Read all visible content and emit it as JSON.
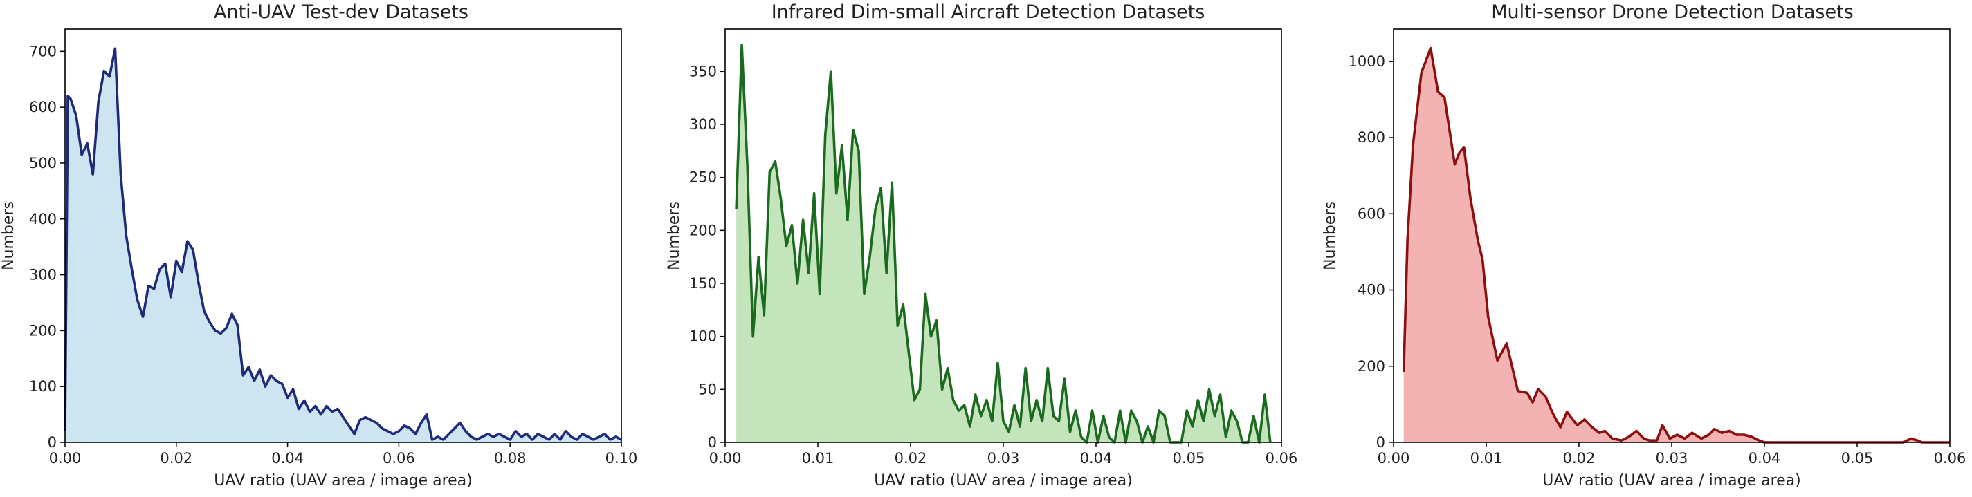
{
  "chart_data": [
    {
      "type": "area",
      "title": "Anti-UAV Test-dev Datasets",
      "xlabel": "UAV ratio (UAV area / image area)",
      "ylabel": "Numbers",
      "xlim": [
        0,
        0.1
      ],
      "ylim": [
        0,
        740
      ],
      "xticks": [
        0,
        0.02,
        0.04,
        0.06,
        0.08,
        0.1
      ],
      "xtick_labels": [
        "0.00",
        "0.02",
        "0.04",
        "0.06",
        "0.08",
        "0.10"
      ],
      "yticks": [
        0,
        100,
        200,
        300,
        400,
        500,
        600,
        700
      ],
      "ytick_labels": [
        "0",
        "100",
        "200",
        "300",
        "400",
        "500",
        "600",
        "700"
      ],
      "grid": false,
      "line_color": "#1f2a7a",
      "fill_color": "#cde5f0",
      "series": [
        {
          "x": [
            0.0,
            0.0005,
            0.001,
            0.002,
            0.003,
            0.004,
            0.005,
            0.006,
            0.007,
            0.008,
            0.009,
            0.01,
            0.011,
            0.012,
            0.013,
            0.014,
            0.015,
            0.016,
            0.017,
            0.018,
            0.019,
            0.02,
            0.021,
            0.022,
            0.023,
            0.024,
            0.025,
            0.026,
            0.027,
            0.028,
            0.029,
            0.03,
            0.031,
            0.032,
            0.033,
            0.034,
            0.035,
            0.036,
            0.037,
            0.038,
            0.039,
            0.04,
            0.041,
            0.042,
            0.043,
            0.044,
            0.045,
            0.046,
            0.047,
            0.048,
            0.049,
            0.05,
            0.051,
            0.052,
            0.053,
            0.054,
            0.055,
            0.056,
            0.057,
            0.058,
            0.059,
            0.06,
            0.061,
            0.062,
            0.063,
            0.064,
            0.065,
            0.066,
            0.067,
            0.068,
            0.069,
            0.07,
            0.071,
            0.072,
            0.073,
            0.074,
            0.075,
            0.076,
            0.077,
            0.078,
            0.079,
            0.08,
            0.081,
            0.082,
            0.083,
            0.084,
            0.085,
            0.086,
            0.087,
            0.088,
            0.089,
            0.09,
            0.091,
            0.092,
            0.093,
            0.094,
            0.095,
            0.096,
            0.097,
            0.098,
            0.099,
            0.1
          ],
          "y": [
            20,
            620,
            615,
            585,
            515,
            535,
            480,
            610,
            665,
            655,
            705,
            480,
            370,
            310,
            255,
            225,
            280,
            275,
            310,
            320,
            260,
            325,
            305,
            360,
            345,
            285,
            235,
            215,
            200,
            195,
            205,
            230,
            210,
            120,
            135,
            110,
            130,
            100,
            120,
            110,
            105,
            80,
            95,
            60,
            75,
            55,
            65,
            50,
            65,
            55,
            60,
            45,
            30,
            15,
            40,
            45,
            40,
            35,
            25,
            20,
            15,
            20,
            30,
            25,
            15,
            35,
            50,
            5,
            10,
            5,
            15,
            25,
            35,
            20,
            10,
            5,
            10,
            15,
            10,
            15,
            10,
            5,
            20,
            10,
            15,
            5,
            15,
            10,
            5,
            15,
            5,
            20,
            10,
            5,
            15,
            10,
            5,
            10,
            15,
            5,
            10,
            5
          ]
        }
      ]
    },
    {
      "type": "area",
      "title": "Infrared Dim-small Aircraft Detection Datasets",
      "xlabel": "UAV ratio (UAV area / image area)",
      "ylabel": "Numbers",
      "xlim": [
        0,
        0.06
      ],
      "ylim": [
        0,
        390
      ],
      "xticks": [
        0,
        0.01,
        0.02,
        0.03,
        0.04,
        0.05,
        0.06
      ],
      "xtick_labels": [
        "0.00",
        "0.01",
        "0.02",
        "0.03",
        "0.04",
        "0.05",
        "0.06"
      ],
      "yticks": [
        0,
        50,
        100,
        150,
        200,
        250,
        300,
        350
      ],
      "ytick_labels": [
        "0",
        "50",
        "100",
        "150",
        "200",
        "250",
        "300",
        "350"
      ],
      "grid": false,
      "line_color": "#1b6a1f",
      "fill_color": "#c4e4bb",
      "series": [
        {
          "x": [
            0.0012,
            0.0018,
            0.0024,
            0.003,
            0.0036,
            0.0042,
            0.0048,
            0.0054,
            0.006,
            0.0066,
            0.0072,
            0.0078,
            0.0084,
            0.009,
            0.0096,
            0.0102,
            0.0108,
            0.0114,
            0.012,
            0.0126,
            0.0132,
            0.0138,
            0.0144,
            0.015,
            0.0156,
            0.0162,
            0.0168,
            0.0174,
            0.018,
            0.0186,
            0.0192,
            0.0198,
            0.0204,
            0.021,
            0.0216,
            0.0222,
            0.0228,
            0.0234,
            0.024,
            0.0246,
            0.0252,
            0.0258,
            0.0264,
            0.027,
            0.0276,
            0.0282,
            0.0288,
            0.0294,
            0.03,
            0.0306,
            0.0312,
            0.0318,
            0.0324,
            0.033,
            0.0336,
            0.0342,
            0.0348,
            0.0354,
            0.036,
            0.0366,
            0.0372,
            0.0378,
            0.0384,
            0.039,
            0.0396,
            0.0402,
            0.0408,
            0.0414,
            0.042,
            0.0426,
            0.0432,
            0.0438,
            0.0444,
            0.045,
            0.0456,
            0.0462,
            0.0468,
            0.0474,
            0.048,
            0.0486,
            0.0492,
            0.0498,
            0.0504,
            0.051,
            0.0516,
            0.0522,
            0.0528,
            0.0534,
            0.054,
            0.0546,
            0.0552,
            0.0558,
            0.0564,
            0.057,
            0.0576,
            0.0582,
            0.0588
          ],
          "y": [
            220,
            375,
            260,
            100,
            175,
            120,
            255,
            265,
            230,
            185,
            205,
            150,
            210,
            160,
            235,
            140,
            290,
            350,
            235,
            280,
            210,
            295,
            275,
            140,
            175,
            220,
            240,
            160,
            245,
            110,
            130,
            85,
            40,
            50,
            140,
            100,
            115,
            50,
            70,
            40,
            30,
            35,
            15,
            45,
            25,
            40,
            20,
            75,
            20,
            10,
            35,
            15,
            70,
            20,
            40,
            20,
            70,
            25,
            20,
            60,
            10,
            30,
            5,
            0,
            30,
            0,
            25,
            5,
            0,
            30,
            0,
            30,
            20,
            0,
            15,
            0,
            30,
            25,
            0,
            0,
            0,
            30,
            15,
            40,
            20,
            50,
            25,
            45,
            5,
            30,
            20,
            0,
            0,
            25,
            0,
            45,
            0
          ]
        }
      ]
    },
    {
      "type": "area",
      "title": "Multi-sensor Drone Detection Datasets",
      "xlabel": "UAV ratio (UAV area / image area)",
      "ylabel": "Numbers",
      "xlim": [
        0,
        0.06
      ],
      "ylim": [
        0,
        1085
      ],
      "xticks": [
        0,
        0.01,
        0.02,
        0.03,
        0.04,
        0.05,
        0.06
      ],
      "xtick_labels": [
        "0.00",
        "0.01",
        "0.02",
        "0.03",
        "0.04",
        "0.05",
        "0.06"
      ],
      "yticks": [
        0,
        200,
        400,
        600,
        800,
        1000
      ],
      "ytick_labels": [
        "0",
        "200",
        "400",
        "600",
        "800",
        "1000"
      ],
      "grid": false,
      "line_color": "#8b1010",
      "fill_color": "#f3b3b3",
      "series": [
        {
          "x": [
            0.0011,
            0.0015,
            0.0021,
            0.003,
            0.004,
            0.0048,
            0.0055,
            0.0066,
            0.0071,
            0.0076,
            0.0083,
            0.0091,
            0.0096,
            0.0102,
            0.0112,
            0.0122,
            0.0134,
            0.0144,
            0.015,
            0.0156,
            0.0164,
            0.0172,
            0.018,
            0.0187,
            0.0198,
            0.0206,
            0.0214,
            0.0222,
            0.0228,
            0.0236,
            0.0246,
            0.0254,
            0.0262,
            0.027,
            0.0276,
            0.0284,
            0.029,
            0.0298,
            0.0306,
            0.0314,
            0.0322,
            0.0332,
            0.034,
            0.0346,
            0.0354,
            0.0362,
            0.037,
            0.0378,
            0.0386,
            0.0394,
            0.04,
            0.045,
            0.05,
            0.055,
            0.0558,
            0.0565,
            0.057,
            0.058,
            0.06
          ],
          "y": [
            185,
            530,
            780,
            970,
            1035,
            920,
            905,
            730,
            760,
            775,
            640,
            530,
            480,
            330,
            215,
            260,
            135,
            130,
            105,
            140,
            120,
            75,
            40,
            80,
            45,
            60,
            40,
            25,
            30,
            10,
            5,
            15,
            30,
            10,
            5,
            5,
            45,
            10,
            20,
            10,
            25,
            10,
            20,
            35,
            25,
            30,
            20,
            20,
            15,
            5,
            0,
            0,
            0,
            0,
            10,
            5,
            0,
            0,
            0
          ]
        }
      ]
    }
  ]
}
